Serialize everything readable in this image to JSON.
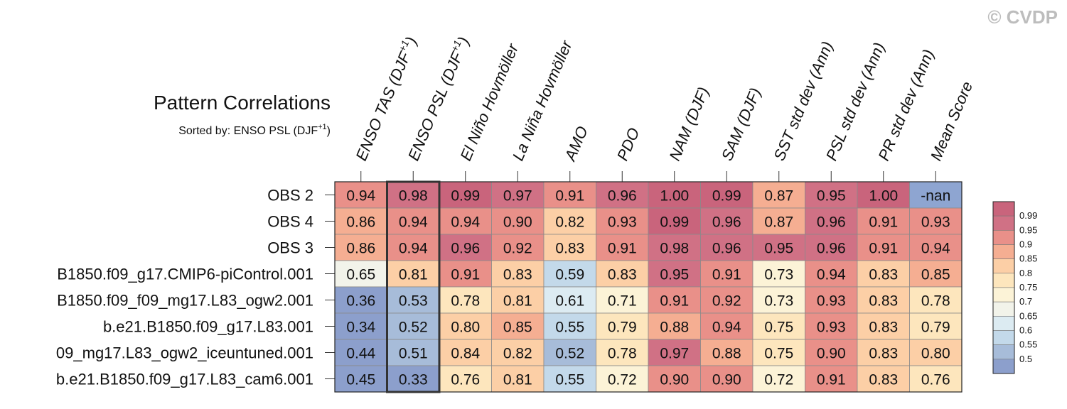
{
  "watermark": "© CVDP",
  "chart_data": {
    "type": "heatmap",
    "title": "Pattern Correlations",
    "subtitle": "Sorted by: ENSO PSL (DJF+1)",
    "subtitle_base": "Sorted by: ENSO PSL (DJF",
    "subtitle_sup": "+1",
    "subtitle_close": ")",
    "highlight_column": 1,
    "columns": [
      {
        "label": "ENSO TAS (DJF",
        "sup": "+1",
        "close": ")"
      },
      {
        "label": "ENSO PSL (DJF",
        "sup": "+1",
        "close": ")"
      },
      {
        "label": "El Niño Hovmöller",
        "sup": "",
        "close": ""
      },
      {
        "label": "La Niña Hovmöller",
        "sup": "",
        "close": ""
      },
      {
        "label": "AMO",
        "sup": "",
        "close": ""
      },
      {
        "label": "PDO",
        "sup": "",
        "close": ""
      },
      {
        "label": "NAM (DJF)",
        "sup": "",
        "close": ""
      },
      {
        "label": "SAM (DJF)",
        "sup": "",
        "close": ""
      },
      {
        "label": "SST std dev (Ann)",
        "sup": "",
        "close": ""
      },
      {
        "label": "PSL std dev (Ann)",
        "sup": "",
        "close": ""
      },
      {
        "label": "PR std dev (Ann)",
        "sup": "",
        "close": ""
      },
      {
        "label": "Mean Score",
        "sup": "",
        "close": ""
      }
    ],
    "rows": [
      "OBS 2",
      "OBS 4",
      "OBS 3",
      "B1850.f09_g17.CMIP6-piControl.001",
      "B1850.f09_f09_mg17.L83_ogw2.001",
      "b.e21.B1850.f09_g17.L83.001",
      "09_mg17.L83_ogw2_iceuntuned.001",
      "b.e21.B1850.f09_g17.L83_cam6.001"
    ],
    "values": [
      [
        "0.94",
        "0.98",
        "0.99",
        "0.97",
        "0.91",
        "0.96",
        "1.00",
        "0.99",
        "0.87",
        "0.95",
        "1.00",
        "-nan"
      ],
      [
        "0.86",
        "0.94",
        "0.94",
        "0.90",
        "0.82",
        "0.93",
        "0.99",
        "0.96",
        "0.87",
        "0.96",
        "0.91",
        "0.93"
      ],
      [
        "0.86",
        "0.94",
        "0.96",
        "0.92",
        "0.83",
        "0.91",
        "0.98",
        "0.96",
        "0.95",
        "0.96",
        "0.91",
        "0.94"
      ],
      [
        "0.65",
        "0.81",
        "0.91",
        "0.83",
        "0.59",
        "0.83",
        "0.95",
        "0.91",
        "0.73",
        "0.94",
        "0.83",
        "0.85"
      ],
      [
        "0.36",
        "0.53",
        "0.78",
        "0.81",
        "0.61",
        "0.71",
        "0.91",
        "0.92",
        "0.73",
        "0.93",
        "0.83",
        "0.78"
      ],
      [
        "0.34",
        "0.52",
        "0.80",
        "0.85",
        "0.55",
        "0.79",
        "0.88",
        "0.94",
        "0.75",
        "0.93",
        "0.83",
        "0.79"
      ],
      [
        "0.44",
        "0.51",
        "0.84",
        "0.82",
        "0.52",
        "0.78",
        "0.97",
        "0.88",
        "0.75",
        "0.90",
        "0.83",
        "0.80"
      ],
      [
        "0.45",
        "0.33",
        "0.76",
        "0.81",
        "0.55",
        "0.72",
        "0.90",
        "0.90",
        "0.72",
        "0.91",
        "0.83",
        "0.76"
      ]
    ],
    "colorbar": {
      "ticks": [
        "0.99",
        "0.95",
        "0.9",
        "0.85",
        "0.8",
        "0.75",
        "0.7",
        "0.65",
        "0.6",
        "0.55",
        "0.5"
      ],
      "thresholds": [
        0.5,
        0.55,
        0.6,
        0.65,
        0.7,
        0.75,
        0.8,
        0.85,
        0.9,
        0.95,
        0.99
      ],
      "colors": [
        "#8c9fcc",
        "#a7bcd9",
        "#c3d9ea",
        "#dcebf2",
        "#f2f3ea",
        "#fcf3d7",
        "#fde6bd",
        "#fccfa6",
        "#f5ae92",
        "#e99089",
        "#d07185",
        "#c9647c"
      ],
      "nan_color": "#8ea5d1"
    }
  }
}
